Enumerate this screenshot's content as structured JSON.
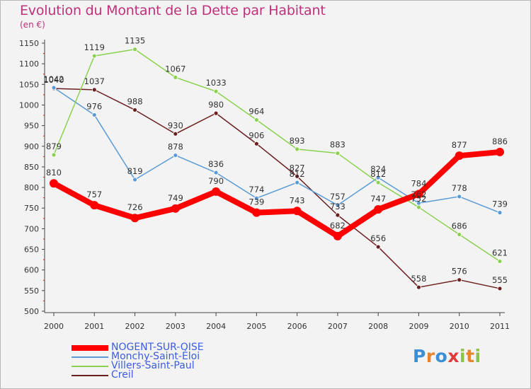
{
  "title": "Evolution du Montant de la Dette par Habitant",
  "unit": "(en €)",
  "logo": {
    "letters": [
      "P",
      "r",
      "o",
      "x",
      "i",
      "t",
      "i"
    ],
    "colors": [
      "#3a8fd6",
      "#e8842c",
      "#3a8fd6",
      "#e03a3a",
      "#8bc34a",
      "#e8842c",
      "#8bc34a"
    ]
  },
  "chart_data": {
    "type": "line",
    "x": [
      "2000",
      "2001",
      "2002",
      "2003",
      "2004",
      "2005",
      "2006",
      "2007",
      "2008",
      "2009",
      "2010",
      "2011"
    ],
    "ylim": [
      500,
      1150
    ],
    "yticks": [
      500,
      550,
      600,
      650,
      700,
      750,
      800,
      850,
      900,
      950,
      1000,
      1050,
      1100,
      1150
    ],
    "grid": false,
    "legend_position": "bottom-left",
    "series": [
      {
        "name": "NOGENT-SUR-OISE",
        "color": "#ff0000",
        "width": "thick",
        "values": [
          810,
          757,
          726,
          749,
          790,
          739,
          743,
          682,
          747,
          784,
          877,
          886
        ]
      },
      {
        "name": "Monchy-Saint-Éloi",
        "color": "#5b9bd5",
        "width": "thin",
        "values": [
          1042,
          976,
          819,
          878,
          836,
          774,
          812,
          757,
          824,
          762,
          778,
          739
        ]
      },
      {
        "name": "Villers-Saint-Paul",
        "color": "#8bd14f",
        "width": "thin",
        "values": [
          879,
          1119,
          1135,
          1067,
          1033,
          964,
          893,
          883,
          812,
          752,
          686,
          621
        ]
      },
      {
        "name": "Creil",
        "color": "#6b1f1f",
        "width": "thin",
        "values": [
          1040,
          1037,
          988,
          930,
          980,
          906,
          827,
          733,
          656,
          558,
          576,
          555
        ]
      }
    ]
  }
}
